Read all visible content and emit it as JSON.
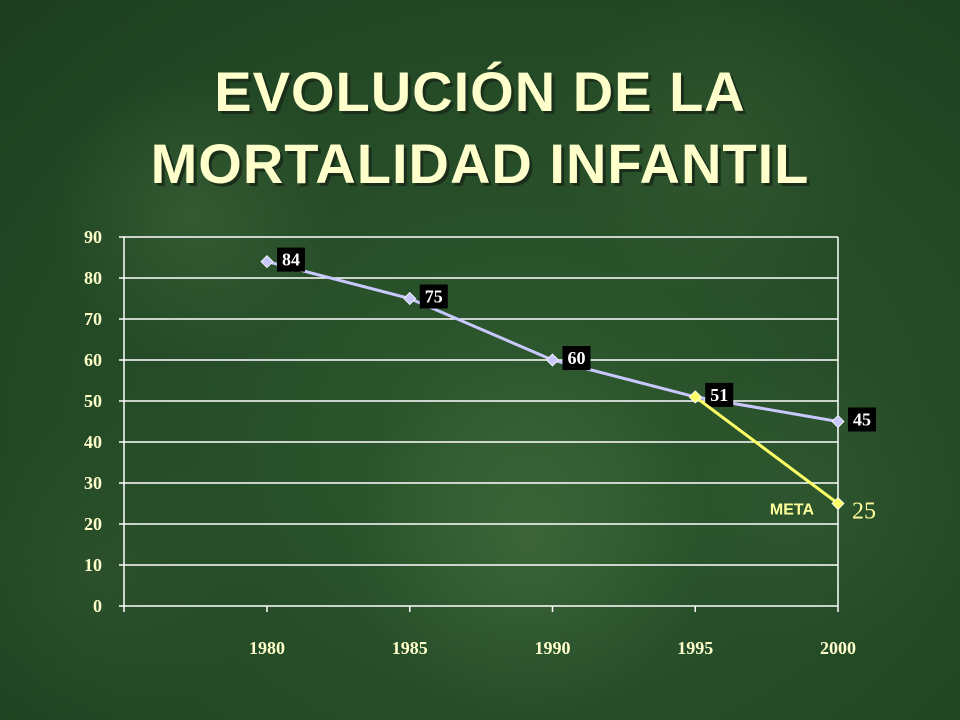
{
  "title_lines": [
    "EVOLUCIÓN DE LA",
    "MORTALIDAD INFANTIL"
  ],
  "colors": {
    "title": "#ffffcc",
    "background": "#264d28",
    "gridline": "#ffffff",
    "main_series": "#c8c8ff",
    "meta_series": "#ffff66",
    "label_box": "#000000"
  },
  "chart_data": {
    "type": "line",
    "x": [
      "1980",
      "1985",
      "1990",
      "1995",
      "2000"
    ],
    "ylim": [
      0,
      90
    ],
    "yticks": [
      "0",
      "10",
      "20",
      "30",
      "40",
      "50",
      "60",
      "70",
      "80",
      "90"
    ],
    "grid": true,
    "series": [
      {
        "values": [
          84,
          75,
          60,
          51,
          45
        ],
        "labels": [
          "84",
          "75",
          "60",
          "51",
          "45"
        ]
      },
      {
        "name": "META",
        "x": [
          "1995",
          "2000"
        ],
        "values": [
          51,
          25
        ],
        "end_label": "25"
      }
    ]
  }
}
